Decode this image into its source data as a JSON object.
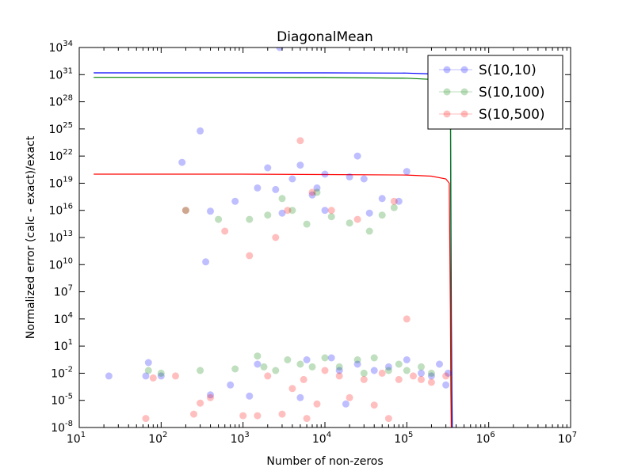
{
  "chart_data": {
    "type": "scatter",
    "title": "DiagonalMean",
    "xlabel": "Number of non-zeros",
    "ylabel": "Normalized error (calc - exact)/exact",
    "xscale": "log",
    "yscale": "log",
    "xlim": [
      10,
      10000000
    ],
    "ylim": [
      1e-08,
      1e+34
    ],
    "x_ticks": [
      {
        "base": "10",
        "exp": "1",
        "value": 10
      },
      {
        "base": "10",
        "exp": "2",
        "value": 100
      },
      {
        "base": "10",
        "exp": "3",
        "value": 1000
      },
      {
        "base": "10",
        "exp": "4",
        "value": 10000
      },
      {
        "base": "10",
        "exp": "5",
        "value": 100000
      },
      {
        "base": "10",
        "exp": "6",
        "value": 1000000
      },
      {
        "base": "10",
        "exp": "7",
        "value": 10000000
      }
    ],
    "y_ticks": [
      {
        "base": "10",
        "exp": "-8",
        "value": 1e-08
      },
      {
        "base": "10",
        "exp": "-5",
        "value": 1e-05
      },
      {
        "base": "10",
        "exp": "-2",
        "value": 0.01
      },
      {
        "base": "10",
        "exp": "1",
        "value": 10.0
      },
      {
        "base": "10",
        "exp": "4",
        "value": 10000.0
      },
      {
        "base": "10",
        "exp": "7",
        "value": 10000000.0
      },
      {
        "base": "10",
        "exp": "10",
        "value": 10000000000.0
      },
      {
        "base": "10",
        "exp": "13",
        "value": 10000000000000.0
      },
      {
        "base": "10",
        "exp": "16",
        "value": 1e+16
      },
      {
        "base": "10",
        "exp": "19",
        "value": 1e+19
      },
      {
        "base": "10",
        "exp": "22",
        "value": 1e+22
      },
      {
        "base": "10",
        "exp": "25",
        "value": 1e+25
      },
      {
        "base": "10",
        "exp": "28",
        "value": 1e+28
      },
      {
        "base": "10",
        "exp": "31",
        "value": 1e+31
      },
      {
        "base": "10",
        "exp": "34",
        "value": 1e+34
      }
    ],
    "legend_position": "top-right",
    "series": [
      {
        "name": "S(10,10)",
        "color": "#0000ff",
        "line": {
          "x": [
            15,
            1000,
            10000,
            100000,
            200000,
            300000,
            340000,
            350000,
            355000,
            360000
          ],
          "y": [
            1.6e+31,
            1.6e+31,
            1.6e+31,
            1.5e+31,
            1.2e+31,
            7e+30,
            3e+30,
            10000.0,
            0.0001,
            1e-09
          ]
        },
        "points": [
          [
            23,
            0.005
          ],
          [
            65,
            0.005
          ],
          [
            70,
            0.15
          ],
          [
            100,
            0.005
          ],
          [
            180,
            2e+21
          ],
          [
            300,
            6e+24
          ],
          [
            400,
            8000000000000000.0
          ],
          [
            350,
            20000000000.0
          ],
          [
            400,
            4e-05
          ],
          [
            700,
            0.0005
          ],
          [
            800,
            1e+17
          ],
          [
            1200,
            3e-05
          ],
          [
            1500,
            0.1
          ],
          [
            1500,
            3e+18
          ],
          [
            2000,
            5e+20
          ],
          [
            2500,
            2e+18
          ],
          [
            2800,
            1e+34
          ],
          [
            3000,
            5000000000000000.0
          ],
          [
            4000,
            3e+19
          ],
          [
            5000,
            2e-05
          ],
          [
            5000,
            1e+21
          ],
          [
            6000,
            0.3
          ],
          [
            7000,
            5e+17
          ],
          [
            8000,
            3e+18
          ],
          [
            10000,
            1e+20
          ],
          [
            10000,
            1e+16
          ],
          [
            12000,
            0.5
          ],
          [
            15000,
            0.02
          ],
          [
            18000,
            4e-06
          ],
          [
            20000,
            5e+19
          ],
          [
            25000,
            1e+22
          ],
          [
            25000,
            0.1
          ],
          [
            30000,
            3e+19
          ],
          [
            35000,
            5000000000000000.0
          ],
          [
            40000,
            0.02
          ],
          [
            50000,
            2e+17
          ],
          [
            60000,
            0.05
          ],
          [
            80000,
            1e+17
          ],
          [
            100000,
            2e+20
          ],
          [
            100000,
            0.3
          ],
          [
            150000,
            0.01
          ],
          [
            200000,
            0.005
          ],
          [
            250000,
            0.1
          ],
          [
            300000,
            0.0005
          ],
          [
            320000,
            0.01
          ]
        ]
      },
      {
        "name": "S(10,100)",
        "color": "#008000",
        "line": {
          "x": [
            15,
            1000,
            10000,
            100000,
            200000,
            300000,
            340000,
            345000,
            350000
          ],
          "y": [
            5e+30,
            5e+30,
            4.8e+30,
            4e+30,
            3e+30,
            1.5e+30,
            5e+29,
            10000000000.0,
            1e-09
          ]
        },
        "points": [
          [
            70,
            0.02
          ],
          [
            100,
            0.01
          ],
          [
            200,
            1e+16
          ],
          [
            300,
            0.02
          ],
          [
            500,
            1000000000000000.0
          ],
          [
            800,
            0.03
          ],
          [
            1200,
            1000000000000000.0
          ],
          [
            1500,
            0.8
          ],
          [
            1800,
            0.05
          ],
          [
            2000,
            3000000000000000.0
          ],
          [
            2500,
            0.02
          ],
          [
            3000,
            2e+17
          ],
          [
            3500,
            0.3
          ],
          [
            4000,
            1e+16
          ],
          [
            5000,
            0.1
          ],
          [
            6000,
            300000000000000.0
          ],
          [
            7000,
            0.05
          ],
          [
            8000,
            1e+18
          ],
          [
            10000,
            0.5
          ],
          [
            12000,
            2000000000000000.0
          ],
          [
            15000,
            0.05
          ],
          [
            20000,
            400000000000000.0
          ],
          [
            25000,
            0.3
          ],
          [
            30000,
            0.01
          ],
          [
            35000,
            50000000000000.0
          ],
          [
            40000,
            0.5
          ],
          [
            50000,
            3000000000000000.0
          ],
          [
            60000,
            0.02
          ],
          [
            70000,
            2e+16
          ],
          [
            80000,
            0.1
          ],
          [
            100000,
            0.02
          ],
          [
            150000,
            0.05
          ],
          [
            200000,
            0.01
          ]
        ]
      },
      {
        "name": "S(10,500)",
        "color": "#ff0000",
        "line": {
          "x": [
            15,
            1000,
            10000,
            100000,
            200000,
            300000,
            330000,
            340000,
            345000,
            350000
          ],
          "y": [
            1e+20,
            1e+20,
            9e+19,
            8e+19,
            6e+19,
            3e+19,
            1e+19,
            100000.0,
            0.0001,
            1e-09
          ]
        },
        "points": [
          [
            65,
            1e-07
          ],
          [
            80,
            0.003
          ],
          [
            150,
            0.005
          ],
          [
            200,
            1e+16
          ],
          [
            250,
            3e-07
          ],
          [
            300,
            5e-06
          ],
          [
            400,
            2e-05
          ],
          [
            600,
            50000000000000.0
          ],
          [
            1000,
            2e-07
          ],
          [
            1200,
            100000000000.0
          ],
          [
            1500,
            2e-07
          ],
          [
            2000,
            0.005
          ],
          [
            2500,
            10000000000000.0
          ],
          [
            3000,
            3e-07
          ],
          [
            3500,
            1e+16
          ],
          [
            4000,
            0.0002
          ],
          [
            5000,
            5e+23
          ],
          [
            5500,
            0.002
          ],
          [
            6000,
            1e-07
          ],
          [
            7000,
            1e+18
          ],
          [
            8000,
            4e-06
          ],
          [
            10000,
            0.02
          ],
          [
            12000,
            1e+16
          ],
          [
            15000,
            0.005
          ],
          [
            20000,
            2e-05
          ],
          [
            25000,
            1000000000000000.0
          ],
          [
            30000,
            0.002
          ],
          [
            40000,
            3e-06
          ],
          [
            50000,
            0.01
          ],
          [
            60000,
            1e-07
          ],
          [
            70000,
            1e+17
          ],
          [
            80000,
            0.002
          ],
          [
            100000,
            10000.0
          ],
          [
            120000,
            0.005
          ],
          [
            150000,
            0.002
          ],
          [
            200000,
            0.001
          ],
          [
            300000,
            0.005
          ]
        ]
      }
    ]
  }
}
